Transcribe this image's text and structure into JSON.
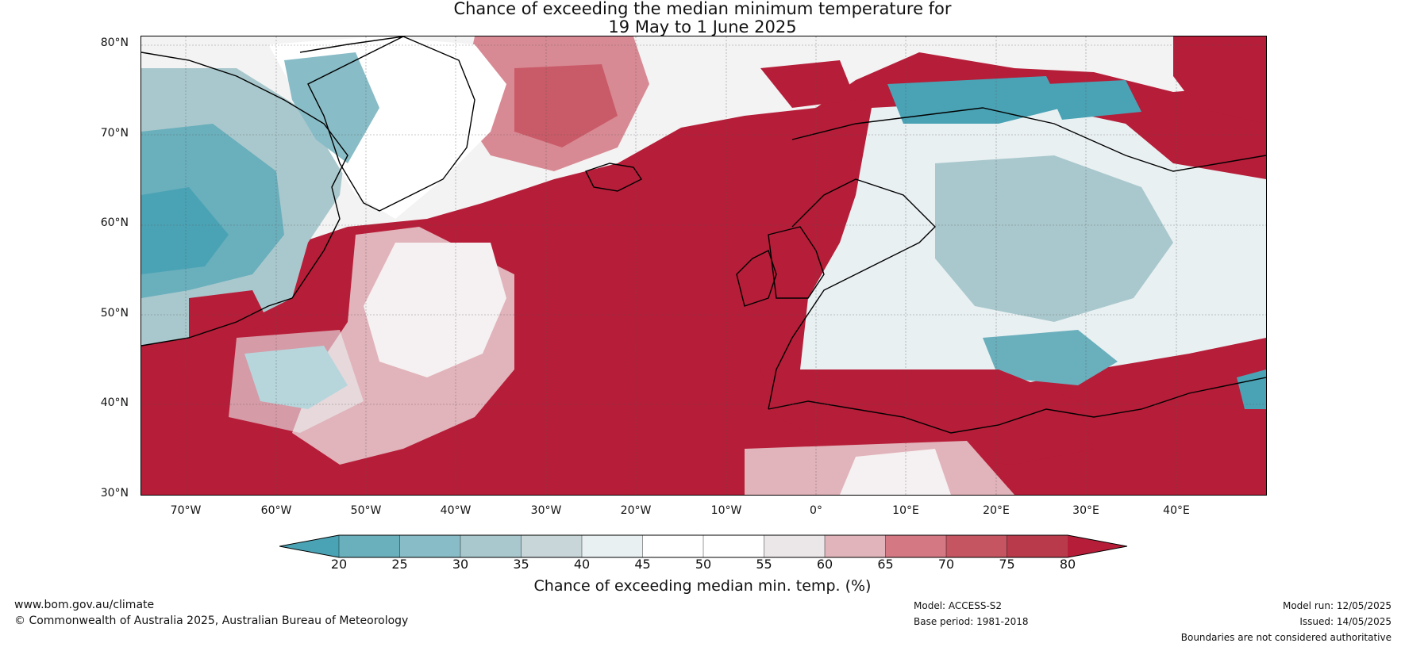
{
  "title": {
    "line1": "Chance of exceeding the median minimum temperature for",
    "line2": "19 May to 1 June 2025"
  },
  "map": {
    "lat_labels": [
      "80°N",
      "70°N",
      "60°N",
      "50°N",
      "40°N",
      "30°N"
    ],
    "lon_labels": [
      "70°W",
      "60°W",
      "50°W",
      "40°W",
      "30°W",
      "20°W",
      "10°W",
      "0°",
      "10°E",
      "20°E",
      "30°E",
      "40°E"
    ],
    "lat_range": [
      30,
      81
    ],
    "lon_range": [
      -75,
      50
    ]
  },
  "legend": {
    "ticks": [
      "20",
      "25",
      "30",
      "35",
      "40",
      "45",
      "50",
      "55",
      "60",
      "65",
      "70",
      "75",
      "80"
    ],
    "label": "Chance of exceeding median min. temp. (%)",
    "colors": [
      "#4aa3b5",
      "#6aafbc",
      "#88bcc6",
      "#a9c8cd",
      "#c9d6d9",
      "#e9f0f2",
      "#ffffff",
      "#ffffff",
      "#ebe6e7",
      "#e1b3ba",
      "#d47883",
      "#c55561",
      "#b93a4a",
      "#b61d38"
    ]
  },
  "footer": {
    "website": "www.bom.gov.au/climate",
    "copyright": "© Commonwealth of Australia 2025, Australian Bureau of Meteorology",
    "model": "Model: ACCESS-S2",
    "base_period": "Base period: 1981-2018",
    "model_run": "Model run: 12/05/2025",
    "issued": "Issued: 14/05/2025",
    "disclaimer": "Boundaries are not considered authoritative"
  }
}
